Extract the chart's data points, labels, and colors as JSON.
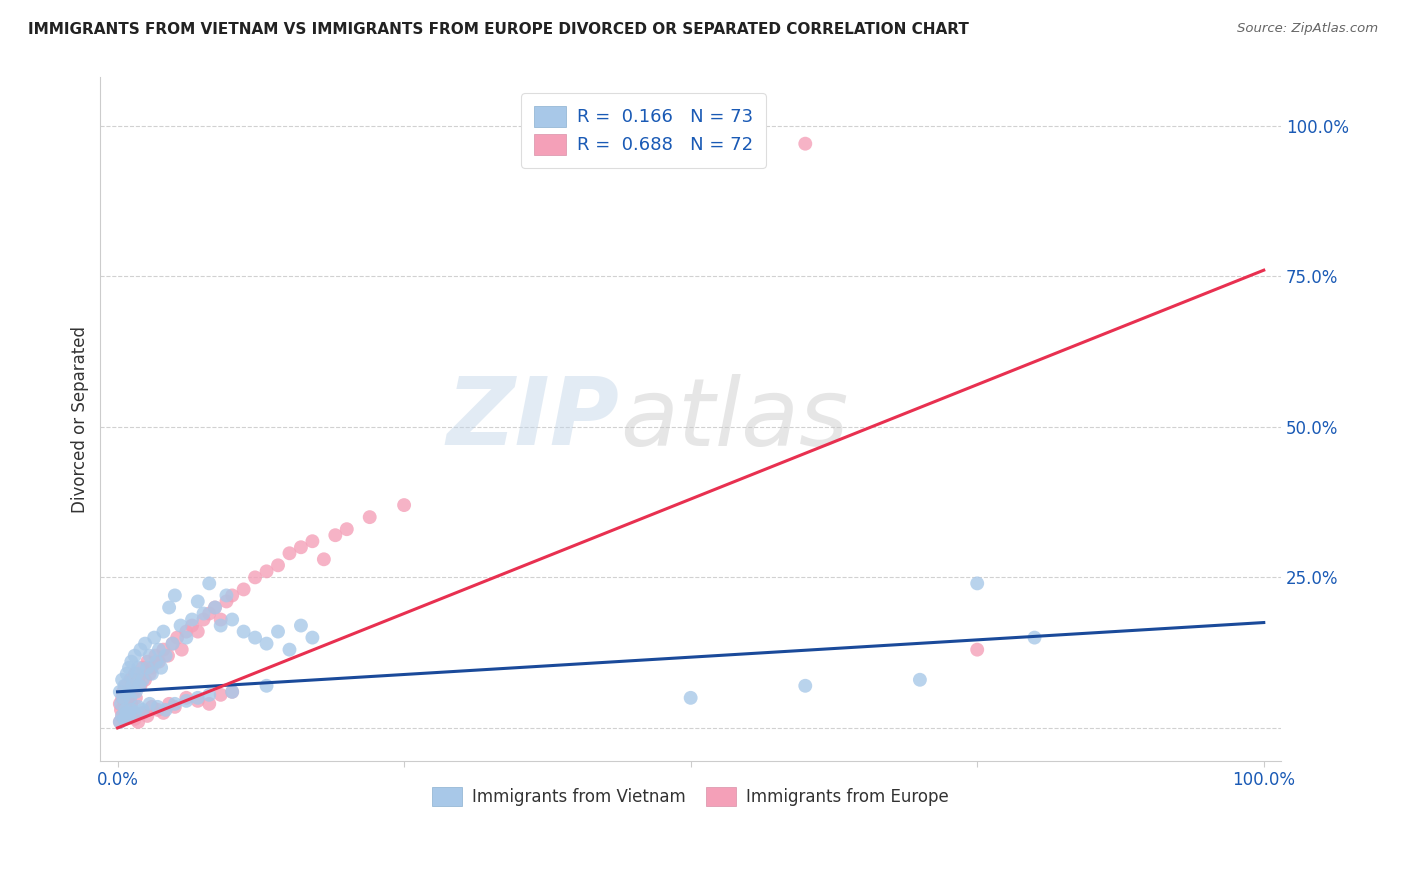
{
  "title": "IMMIGRANTS FROM VIETNAM VS IMMIGRANTS FROM EUROPE DIVORCED OR SEPARATED CORRELATION CHART",
  "source": "Source: ZipAtlas.com",
  "ylabel": "Divorced or Separated",
  "watermark_zip": "ZIP",
  "watermark_atlas": "atlas",
  "legend1_label": "R =  0.166   N = 73",
  "legend2_label": "R =  0.688   N = 72",
  "legend_bottom1": "Immigrants from Vietnam",
  "legend_bottom2": "Immigrants from Europe",
  "vietnam_color": "#a8c8e8",
  "europe_color": "#f4a0b8",
  "vietnam_line_color": "#1a4a9a",
  "europe_line_color": "#e83050",
  "vietnam_scatter_x": [
    0.002,
    0.003,
    0.004,
    0.005,
    0.006,
    0.007,
    0.008,
    0.009,
    0.01,
    0.011,
    0.012,
    0.013,
    0.014,
    0.015,
    0.016,
    0.017,
    0.018,
    0.019,
    0.02,
    0.022,
    0.024,
    0.026,
    0.028,
    0.03,
    0.032,
    0.034,
    0.036,
    0.038,
    0.04,
    0.042,
    0.045,
    0.048,
    0.05,
    0.055,
    0.06,
    0.065,
    0.07,
    0.075,
    0.08,
    0.085,
    0.09,
    0.095,
    0.1,
    0.11,
    0.12,
    0.13,
    0.14,
    0.15,
    0.16,
    0.17,
    0.002,
    0.004,
    0.006,
    0.008,
    0.01,
    0.012,
    0.015,
    0.018,
    0.022,
    0.028,
    0.035,
    0.042,
    0.05,
    0.06,
    0.07,
    0.08,
    0.1,
    0.13,
    0.5,
    0.6,
    0.7,
    0.75,
    0.8
  ],
  "vietnam_scatter_y": [
    0.06,
    0.04,
    0.08,
    0.05,
    0.07,
    0.03,
    0.09,
    0.06,
    0.1,
    0.05,
    0.11,
    0.07,
    0.08,
    0.12,
    0.06,
    0.09,
    0.1,
    0.07,
    0.13,
    0.08,
    0.14,
    0.1,
    0.12,
    0.09,
    0.15,
    0.11,
    0.13,
    0.1,
    0.16,
    0.12,
    0.2,
    0.14,
    0.22,
    0.17,
    0.15,
    0.18,
    0.21,
    0.19,
    0.24,
    0.2,
    0.17,
    0.22,
    0.18,
    0.16,
    0.15,
    0.14,
    0.16,
    0.13,
    0.17,
    0.15,
    0.01,
    0.02,
    0.015,
    0.025,
    0.02,
    0.03,
    0.025,
    0.035,
    0.03,
    0.04,
    0.035,
    0.03,
    0.04,
    0.045,
    0.05,
    0.055,
    0.06,
    0.07,
    0.05,
    0.07,
    0.08,
    0.24,
    0.15
  ],
  "europe_scatter_x": [
    0.002,
    0.003,
    0.004,
    0.005,
    0.006,
    0.007,
    0.008,
    0.009,
    0.01,
    0.011,
    0.012,
    0.013,
    0.014,
    0.015,
    0.016,
    0.018,
    0.02,
    0.022,
    0.024,
    0.026,
    0.028,
    0.03,
    0.033,
    0.036,
    0.04,
    0.044,
    0.048,
    0.052,
    0.056,
    0.06,
    0.065,
    0.07,
    0.075,
    0.08,
    0.085,
    0.09,
    0.095,
    0.1,
    0.11,
    0.12,
    0.13,
    0.14,
    0.15,
    0.16,
    0.17,
    0.18,
    0.19,
    0.2,
    0.22,
    0.25,
    0.002,
    0.004,
    0.006,
    0.008,
    0.01,
    0.012,
    0.015,
    0.018,
    0.022,
    0.026,
    0.03,
    0.035,
    0.04,
    0.045,
    0.05,
    0.06,
    0.07,
    0.08,
    0.09,
    0.1,
    0.6,
    0.75
  ],
  "europe_scatter_y": [
    0.04,
    0.03,
    0.05,
    0.06,
    0.04,
    0.07,
    0.03,
    0.06,
    0.05,
    0.08,
    0.04,
    0.07,
    0.06,
    0.09,
    0.05,
    0.08,
    0.07,
    0.1,
    0.08,
    0.11,
    0.09,
    0.1,
    0.12,
    0.11,
    0.13,
    0.12,
    0.14,
    0.15,
    0.13,
    0.16,
    0.17,
    0.16,
    0.18,
    0.19,
    0.2,
    0.18,
    0.21,
    0.22,
    0.23,
    0.25,
    0.26,
    0.27,
    0.29,
    0.3,
    0.31,
    0.28,
    0.32,
    0.33,
    0.35,
    0.37,
    0.01,
    0.02,
    0.015,
    0.025,
    0.02,
    0.03,
    0.015,
    0.01,
    0.025,
    0.02,
    0.035,
    0.03,
    0.025,
    0.04,
    0.035,
    0.05,
    0.045,
    0.04,
    0.055,
    0.06,
    0.97,
    0.13
  ],
  "vietnam_line_x": [
    0.0,
    1.0
  ],
  "vietnam_line_y": [
    0.06,
    0.175
  ],
  "europe_line_x": [
    0.0,
    1.0
  ],
  "europe_line_y": [
    0.0,
    0.76
  ],
  "xlim": [
    -0.015,
    1.015
  ],
  "ylim": [
    -0.055,
    1.08
  ],
  "dpi": 100,
  "figsize": [
    14.06,
    8.92
  ]
}
